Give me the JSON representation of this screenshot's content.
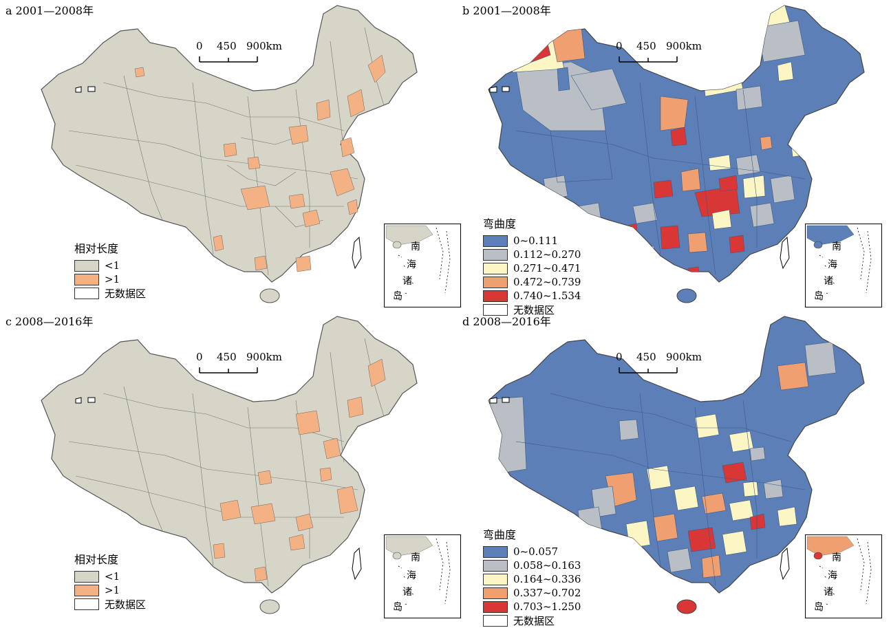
{
  "panels": [
    {
      "id": "a",
      "title": "a 2001—2008年",
      "scale": {
        "ticks": [
          "0",
          "450",
          "900km"
        ]
      },
      "legend": {
        "title": "相对长度",
        "items": [
          {
            "label": "<1",
            "color": "#d6d5c8"
          },
          {
            "label": ">1",
            "color": "#f4b183"
          },
          {
            "label": "无数据区",
            "color": "#ffffff"
          }
        ]
      },
      "inset_labels": [
        "南",
        "海",
        "诸",
        "岛"
      ]
    },
    {
      "id": "b",
      "title": "b 2001—2008年",
      "scale": {
        "ticks": [
          "0",
          "450",
          "900km"
        ]
      },
      "legend": {
        "title": "弯曲度",
        "items": [
          {
            "label": "0~0.111",
            "color": "#5b7fb6"
          },
          {
            "label": "0.112~0.270",
            "color": "#b9bfc4"
          },
          {
            "label": "0.271~0.471",
            "color": "#fbf6c4"
          },
          {
            "label": "0.472~0.739",
            "color": "#f0a070"
          },
          {
            "label": "0.740~1.534",
            "color": "#d93636"
          },
          {
            "label": "无数据区",
            "color": "#ffffff"
          }
        ]
      },
      "inset_labels": [
        "南",
        "海",
        "诸",
        "岛"
      ]
    },
    {
      "id": "c",
      "title": "c 2008—2016年",
      "scale": {
        "ticks": [
          "0",
          "450",
          "900km"
        ]
      },
      "legend": {
        "title": "相对长度",
        "items": [
          {
            "label": "<1",
            "color": "#d6d5c8"
          },
          {
            "label": ">1",
            "color": "#f4b183"
          },
          {
            "label": "无数据区",
            "color": "#ffffff"
          }
        ]
      },
      "inset_labels": [
        "南",
        "海",
        "诸",
        "岛"
      ]
    },
    {
      "id": "d",
      "title": "d 2008—2016年",
      "scale": {
        "ticks": [
          "0",
          "450",
          "900km"
        ]
      },
      "legend": {
        "title": "弯曲度",
        "items": [
          {
            "label": "0~0.057",
            "color": "#5b7fb6"
          },
          {
            "label": "0.058~0.163",
            "color": "#b9bfc4"
          },
          {
            "label": "0.164~0.336",
            "color": "#fbf6c4"
          },
          {
            "label": "0.337~0.702",
            "color": "#f0a070"
          },
          {
            "label": "0.703~1.250",
            "color": "#d93636"
          },
          {
            "label": "无数据区",
            "color": "#ffffff"
          }
        ]
      },
      "inset_labels": [
        "南",
        "海",
        "诸",
        "岛"
      ]
    }
  ],
  "colors": {
    "border": "#555555"
  }
}
